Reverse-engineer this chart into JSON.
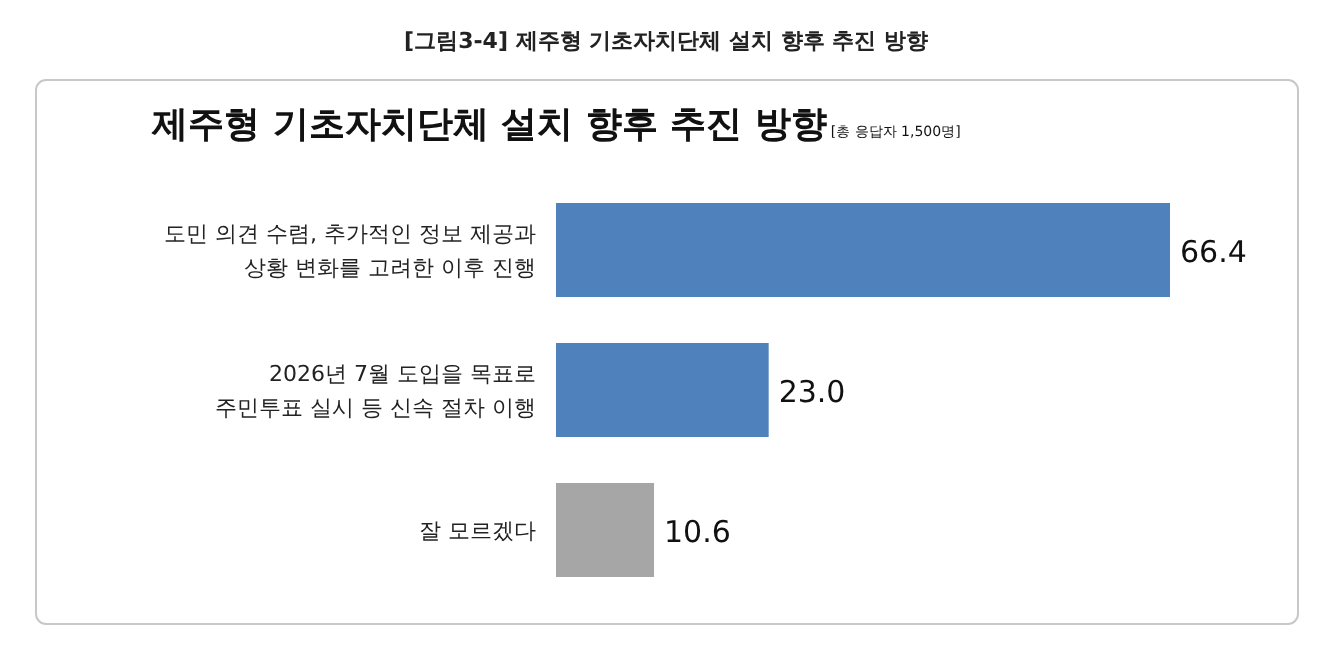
{
  "chart_data": {
    "type": "bar",
    "orientation": "horizontal",
    "annotations": [
      "[그림3-4]  제주형 기초자치단체 설치 향후 추진 방향"
    ],
    "title": "제주형 기초자치단체 설치 향후 추진 방향",
    "subtitle": "[총 응답자 1,500명]",
    "categories": [
      "도민 의견 수렴, 추가적인 정보 제공과\n상황 변화를 고려한 이후 진행",
      "2026년 7월 도입을 목표로\n주민투표 실시 등 신속 절차 이행",
      "잘 모르겠다"
    ],
    "values": [
      66.4,
      23.0,
      10.6
    ],
    "colors": [
      "#4f81bd",
      "#4f81bd",
      "#a6a6a6"
    ],
    "value_labels": [
      "66.4",
      "23.0",
      "10.6"
    ]
  }
}
